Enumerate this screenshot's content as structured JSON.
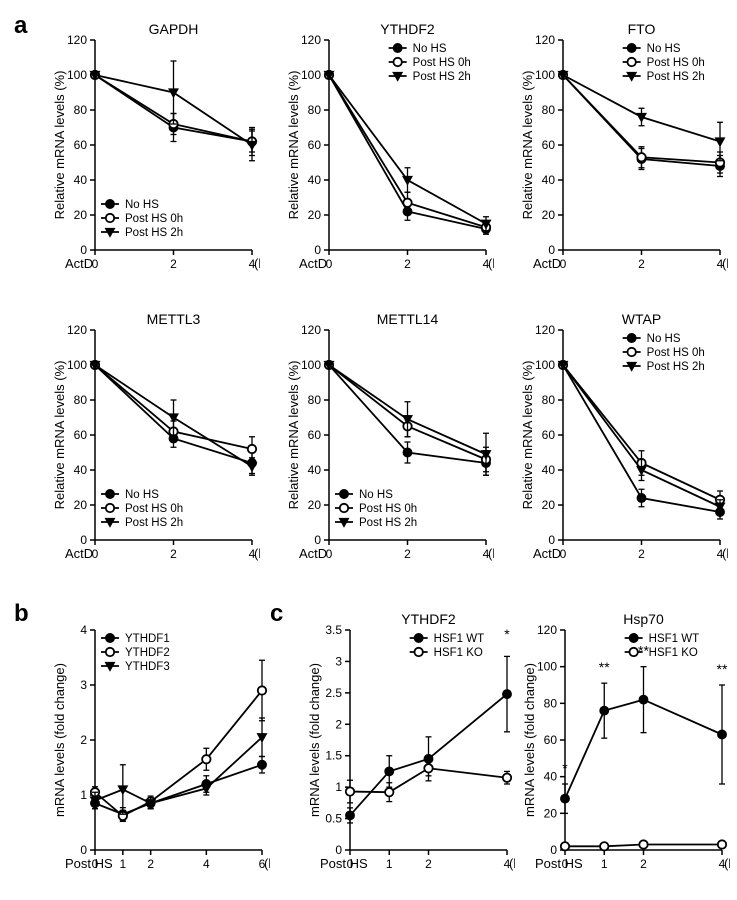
{
  "colors": {
    "bg": "#ffffff",
    "fg": "#000000"
  },
  "panelLabels": {
    "a": "a",
    "b": "b",
    "c": "c"
  },
  "panelA": {
    "xaxis_label": "ActD",
    "xaxis_unit": "(h)",
    "yaxis_label": "Relative mRNA levels (%)",
    "xticks": [
      0,
      2,
      4
    ],
    "yticks": [
      0,
      20,
      40,
      60,
      80,
      100,
      120
    ],
    "ylim": [
      0,
      120
    ],
    "series_legend": [
      "No HS",
      "Post HS 0h",
      "Post HS 2h"
    ],
    "genes": [
      {
        "title": "GAPDH",
        "legendPos": "bl",
        "data": {
          "NoHS": {
            "x": [
              0,
              2,
              4
            ],
            "y": [
              100,
              70,
              62
            ],
            "err": [
              0,
              8,
              8
            ]
          },
          "PostHS0h": {
            "x": [
              0,
              2,
              4
            ],
            "y": [
              100,
              72,
              62
            ],
            "err": [
              0,
              6,
              6
            ]
          },
          "PostHS2h": {
            "x": [
              0,
              2,
              4
            ],
            "y": [
              100,
              90,
              60
            ],
            "err": [
              0,
              18,
              9
            ]
          }
        }
      },
      {
        "title": "YTHDF2",
        "legendPos": "tr",
        "data": {
          "NoHS": {
            "x": [
              0,
              2,
              4
            ],
            "y": [
              100,
              22,
              12
            ],
            "err": [
              0,
              5,
              3
            ]
          },
          "PostHS0h": {
            "x": [
              0,
              2,
              4
            ],
            "y": [
              100,
              27,
              13
            ],
            "err": [
              0,
              6,
              3
            ]
          },
          "PostHS2h": {
            "x": [
              0,
              2,
              4
            ],
            "y": [
              100,
              40,
              15
            ],
            "err": [
              0,
              7,
              4
            ]
          }
        }
      },
      {
        "title": "FTO",
        "legendPos": "tr",
        "data": {
          "NoHS": {
            "x": [
              0,
              2,
              4
            ],
            "y": [
              100,
              52,
              48
            ],
            "err": [
              0,
              6,
              6
            ]
          },
          "PostHS0h": {
            "x": [
              0,
              2,
              4
            ],
            "y": [
              100,
              53,
              50
            ],
            "err": [
              0,
              6,
              6
            ]
          },
          "PostHS2h": {
            "x": [
              0,
              2,
              4
            ],
            "y": [
              100,
              76,
              62
            ],
            "err": [
              0,
              5,
              11
            ]
          }
        }
      },
      {
        "title": "METTL3",
        "legendPos": "bl",
        "data": {
          "NoHS": {
            "x": [
              0,
              2,
              4
            ],
            "y": [
              100,
              58,
              44
            ],
            "err": [
              0,
              5,
              6
            ]
          },
          "PostHS0h": {
            "x": [
              0,
              2,
              4
            ],
            "y": [
              100,
              62,
              52
            ],
            "err": [
              0,
              6,
              7
            ]
          },
          "PostHS2h": {
            "x": [
              0,
              2,
              4
            ],
            "y": [
              100,
              70,
              42
            ],
            "err": [
              0,
              10,
              5
            ]
          }
        }
      },
      {
        "title": "METTL14",
        "legendPos": "bl",
        "data": {
          "NoHS": {
            "x": [
              0,
              2,
              4
            ],
            "y": [
              100,
              50,
              44
            ],
            "err": [
              0,
              6,
              7
            ]
          },
          "PostHS0h": {
            "x": [
              0,
              2,
              4
            ],
            "y": [
              100,
              65,
              46
            ],
            "err": [
              0,
              6,
              7
            ]
          },
          "PostHS2h": {
            "x": [
              0,
              2,
              4
            ],
            "y": [
              100,
              69,
              49
            ],
            "err": [
              0,
              10,
              12
            ]
          }
        }
      },
      {
        "title": "WTAP",
        "legendPos": "tr",
        "data": {
          "NoHS": {
            "x": [
              0,
              2,
              4
            ],
            "y": [
              100,
              24,
              16
            ],
            "err": [
              0,
              5,
              4
            ]
          },
          "PostHS0h": {
            "x": [
              0,
              2,
              4
            ],
            "y": [
              100,
              44,
              23
            ],
            "err": [
              0,
              7,
              5
            ]
          },
          "PostHS2h": {
            "x": [
              0,
              2,
              4
            ],
            "y": [
              100,
              40,
              19
            ],
            "err": [
              0,
              6,
              4
            ]
          }
        }
      }
    ]
  },
  "panelB": {
    "xaxis_label": "Post HS",
    "xaxis_unit": "(h)",
    "yaxis_label": "mRNA levels (fold change)",
    "xticks": [
      0,
      1,
      2,
      4,
      6
    ],
    "yticks": [
      0,
      1,
      2,
      3,
      4
    ],
    "ylim": [
      0,
      4
    ],
    "legend": [
      "YTHDF1",
      "YTHDF2",
      "YTHDF3"
    ],
    "data": {
      "YTHDF1": {
        "x": [
          0,
          1,
          2,
          4,
          6
        ],
        "y": [
          0.85,
          0.65,
          0.85,
          1.2,
          1.55
        ],
        "err": [
          0.1,
          0.12,
          0.1,
          0.15,
          0.15
        ]
      },
      "YTHDF2": {
        "x": [
          0,
          1,
          2,
          4,
          6
        ],
        "y": [
          1.05,
          0.62,
          0.88,
          1.65,
          2.9
        ],
        "err": [
          0.1,
          0.1,
          0.1,
          0.2,
          0.55
        ]
      },
      "YTHDF3": {
        "x": [
          0,
          1,
          2,
          4,
          6
        ],
        "y": [
          0.9,
          1.1,
          0.85,
          1.12,
          2.05
        ],
        "err": [
          0.15,
          0.45,
          0.1,
          0.12,
          0.35
        ]
      }
    }
  },
  "panelC": {
    "xaxis_label": "Post HS",
    "xaxis_unit": "(h)",
    "yaxis_label": "mRNA levels (fold change)",
    "legend": [
      "HSF1 WT",
      "HSF1 KO"
    ],
    "charts": [
      {
        "title": "YTHDF2",
        "xticks": [
          0,
          1,
          2,
          4
        ],
        "yticks": [
          0,
          0.5,
          1.0,
          1.5,
          2.0,
          2.5,
          3.0,
          3.5
        ],
        "ylim": [
          0,
          3.5
        ],
        "data": {
          "WT": {
            "x": [
              0,
              1,
              2,
              4
            ],
            "y": [
              0.55,
              1.25,
              1.45,
              2.48
            ],
            "err": [
              0.12,
              0.25,
              0.35,
              0.6
            ]
          },
          "KO": {
            "x": [
              0,
              1,
              2,
              4
            ],
            "y": [
              0.93,
              0.92,
              1.3,
              1.15
            ],
            "err": [
              0.18,
              0.15,
              0.12,
              0.1
            ]
          }
        },
        "sig": [
          {
            "x": 4,
            "label": "*",
            "yOffset": 0.28
          }
        ]
      },
      {
        "title": "Hsp70",
        "xticks": [
          0,
          1,
          2,
          4
        ],
        "yticks": [
          0,
          20,
          40,
          60,
          80,
          100,
          120
        ],
        "ylim": [
          0,
          120
        ],
        "data": {
          "WT": {
            "x": [
              0,
              1,
              2,
              4
            ],
            "y": [
              28,
              76,
              82,
              63
            ],
            "err": [
              8,
              15,
              18,
              27
            ]
          },
          "KO": {
            "x": [
              0,
              1,
              2,
              4
            ],
            "y": [
              2,
              2,
              3,
              3
            ],
            "err": [
              1,
              1,
              1,
              1
            ]
          }
        },
        "sig": [
          {
            "x": 0,
            "label": "*",
            "yOffset": 6
          },
          {
            "x": 1,
            "label": "**",
            "yOffset": 6
          },
          {
            "x": 2,
            "label": "**",
            "yOffset": 6
          },
          {
            "x": 4,
            "label": "**",
            "yOffset": 6
          }
        ]
      }
    ]
  }
}
